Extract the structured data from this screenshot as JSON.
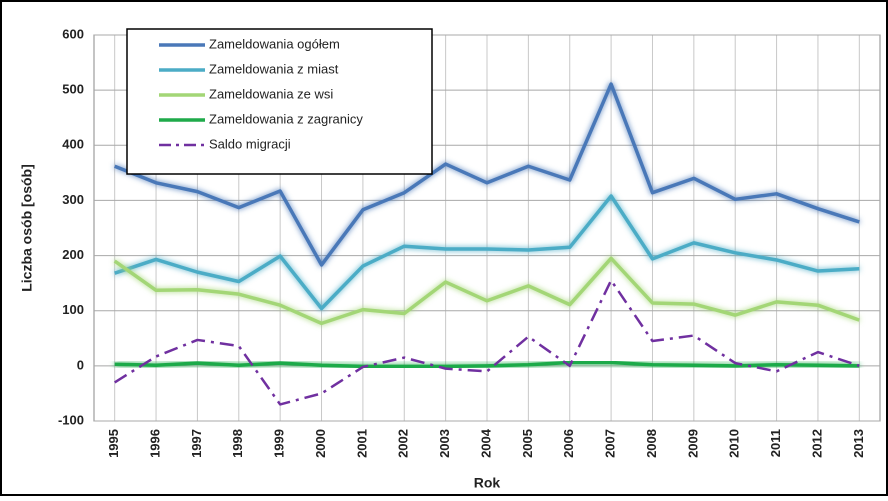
{
  "chart_data": {
    "type": "line",
    "x_label": "Rok",
    "y_label": "Liczba osób [osób]",
    "categories": [
      "1995",
      "1996",
      "1997",
      "1998",
      "1999",
      "2000",
      "2001",
      "2002",
      "2003",
      "2004",
      "2005",
      "2006",
      "2007",
      "2008",
      "2009",
      "2010",
      "2011",
      "2012",
      "2013"
    ],
    "series": [
      {
        "name": "Zameldowania ogółem",
        "color": "#4a78b8",
        "style": "solid",
        "values": [
          362,
          332,
          316,
          287,
          317,
          183,
          283,
          314,
          366,
          332,
          362,
          337,
          511,
          314,
          340,
          302,
          312,
          285,
          261
        ]
      },
      {
        "name": "Zameldowania z miast",
        "color": "#4bacc6",
        "style": "solid",
        "values": [
          168,
          193,
          170,
          153,
          199,
          104,
          181,
          217,
          212,
          212,
          210,
          215,
          308,
          194,
          223,
          205,
          192,
          172,
          176
        ]
      },
      {
        "name": "Zameldowania ze wsi",
        "color": "#a3d676",
        "style": "solid",
        "values": [
          190,
          137,
          138,
          130,
          110,
          77,
          102,
          95,
          152,
          118,
          145,
          111,
          195,
          114,
          112,
          92,
          116,
          110,
          83
        ]
      },
      {
        "name": "Zameldowania z zagranicy",
        "color": "#1faa4a",
        "style": "solid",
        "values": [
          3,
          1,
          5,
          1,
          5,
          1,
          -1,
          -1,
          -1,
          0,
          2,
          6,
          6,
          2,
          1,
          0,
          2,
          1,
          0
        ]
      },
      {
        "name": "Saldo migracji",
        "color": "#7030a0",
        "style": "dashdot",
        "values": [
          -30,
          17,
          47,
          36,
          -70,
          -50,
          -2,
          15,
          -5,
          -10,
          53,
          0,
          155,
          45,
          55,
          5,
          -10,
          25,
          0
        ]
      }
    ],
    "ylim": [
      -100,
      600
    ],
    "yticks": [
      -100,
      0,
      100,
      200,
      300,
      400,
      500,
      600
    ],
    "grid": true,
    "legend": "upper left"
  }
}
